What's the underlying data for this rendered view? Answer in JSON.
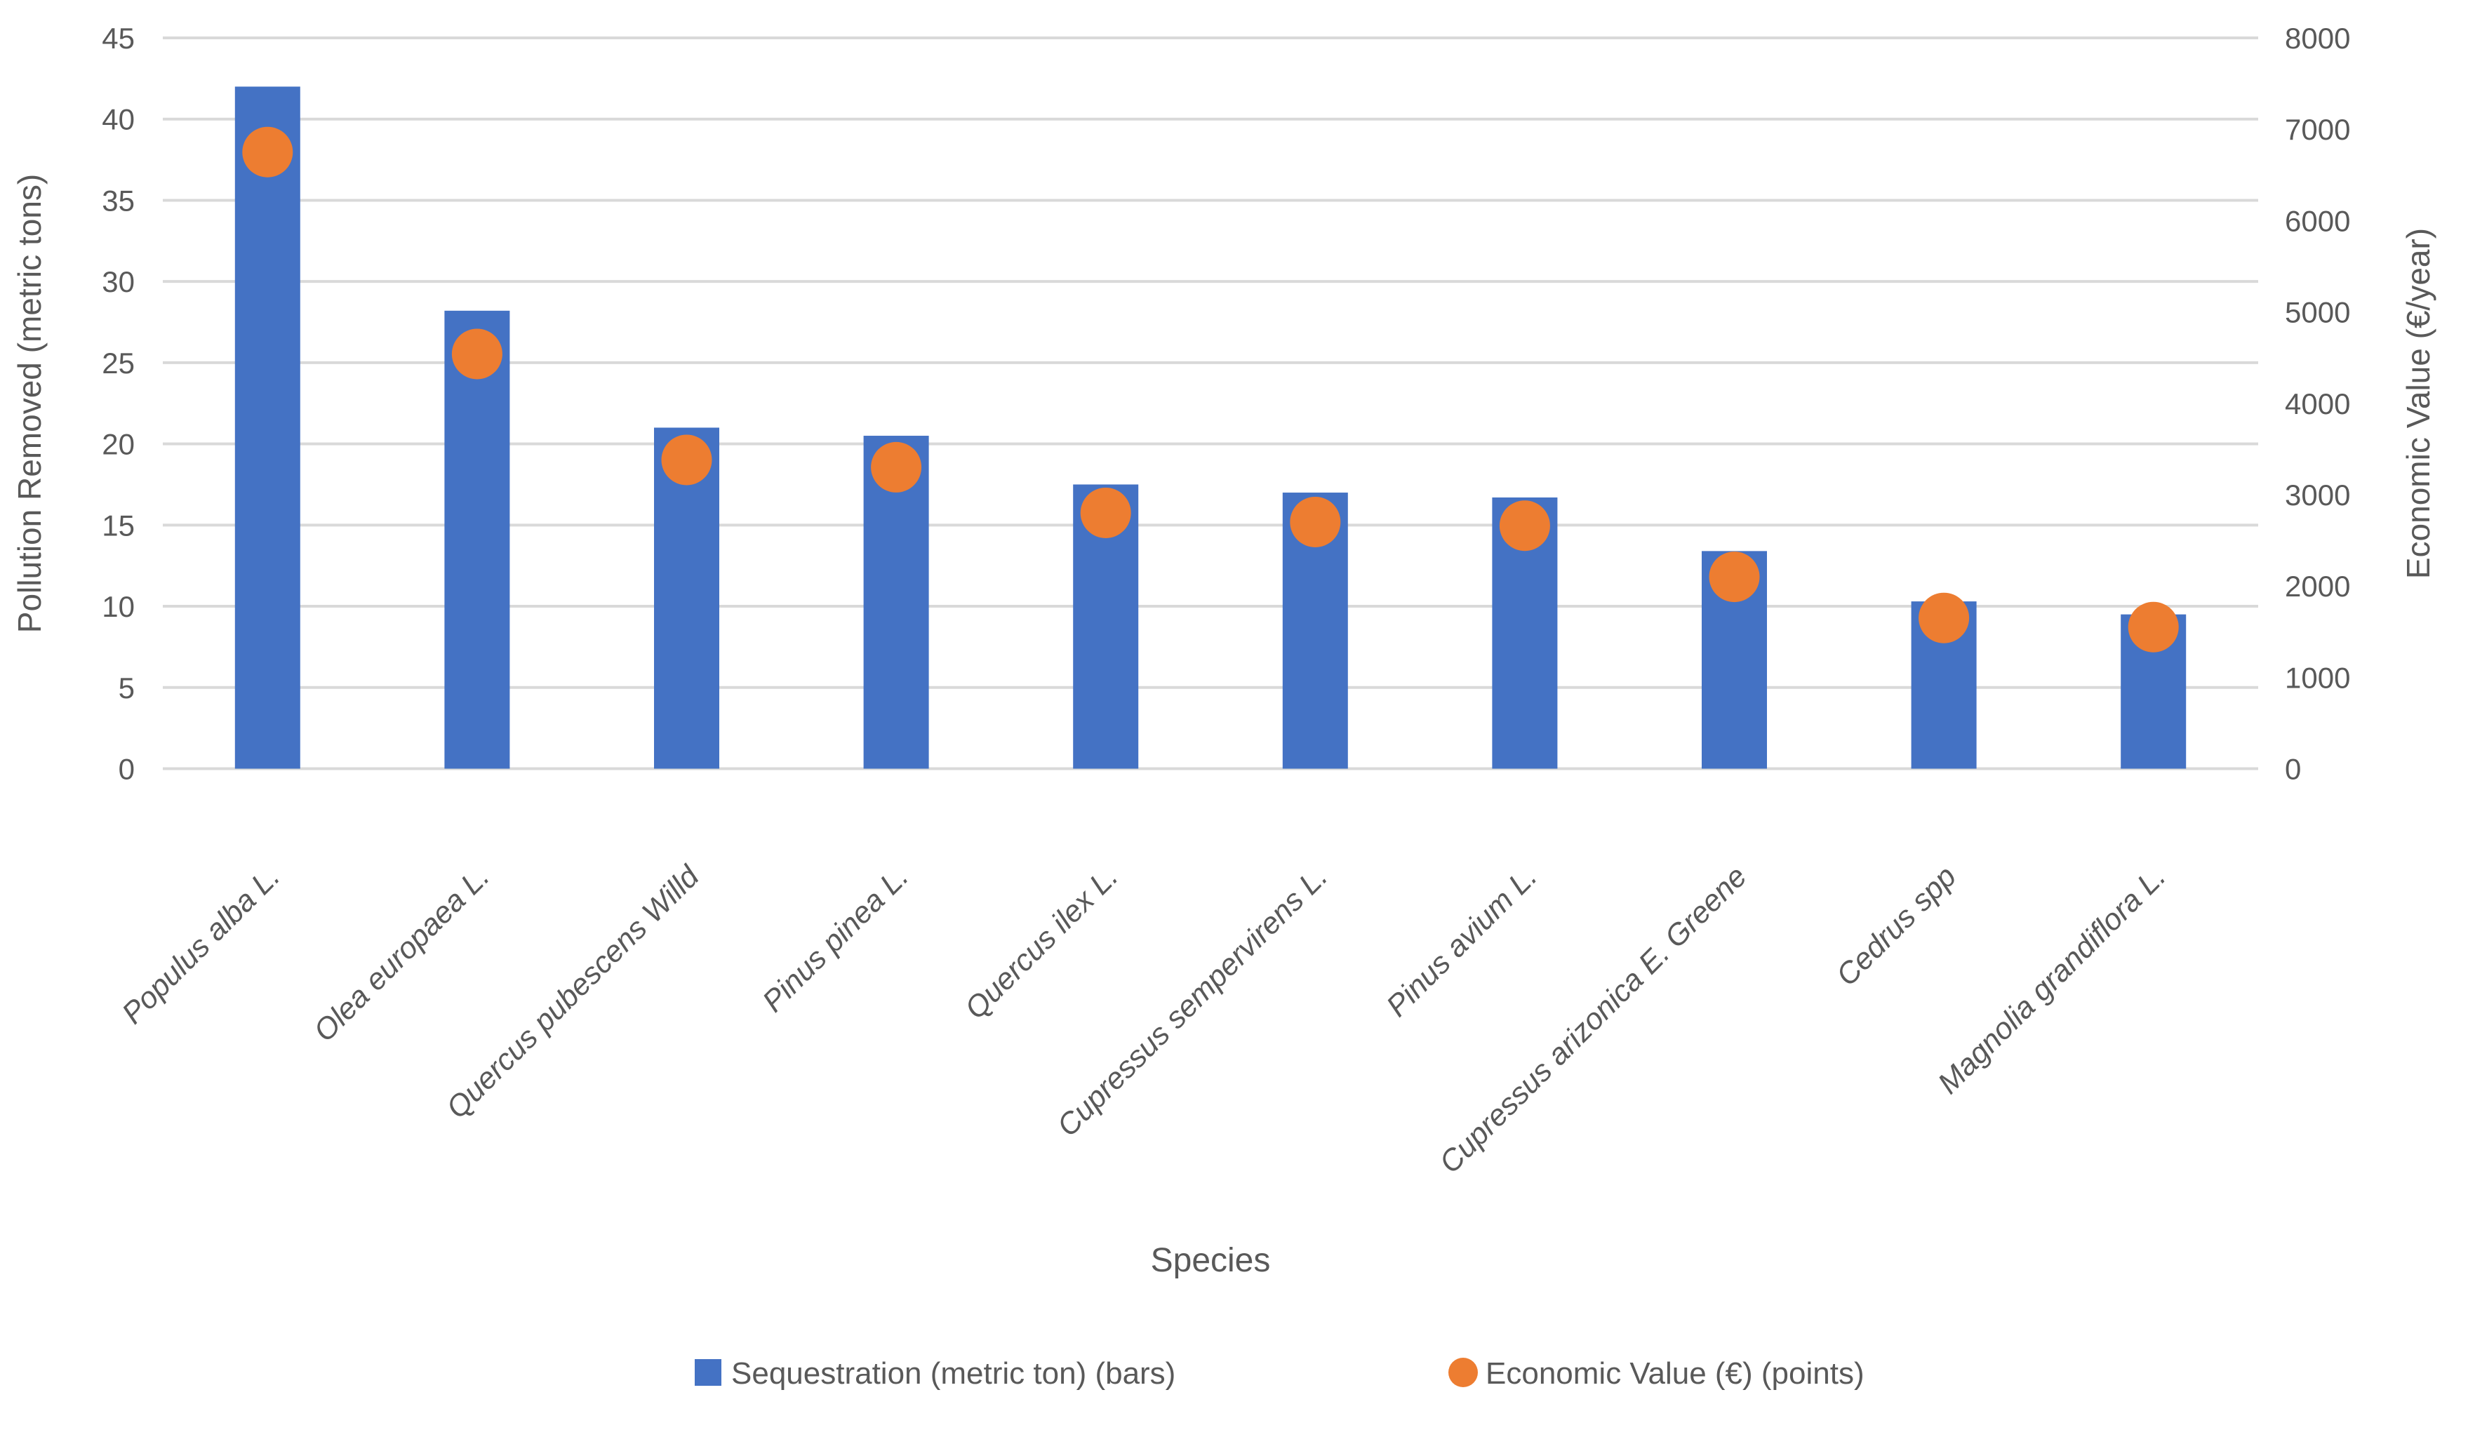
{
  "chart_data": {
    "type": "bar",
    "subtype": "dual-axis-bar-with-points",
    "categories": [
      "Populus alba L.",
      "Olea europaea L.",
      "Quercus pubescens Willd",
      "Pinus pinea L.",
      "Quercus ilex L.",
      "Cupressus sempervirens L.",
      "Pinus avium L.",
      "Cupressus arizonica E. Greene",
      "Cedrus spp",
      "Magnolia grandiflora L."
    ],
    "series": [
      {
        "name": "Sequestration (metric ton) (bars)",
        "marker": "bar",
        "axis": "left",
        "color": "#4472C4",
        "values": [
          42,
          28.2,
          21,
          20.5,
          17.5,
          17,
          16.7,
          13.4,
          10.3,
          9.5
        ]
      },
      {
        "name": "Economic Value (€) (points)",
        "marker": "point",
        "axis": "right",
        "color": "#ED7D31",
        "values": [
          6750,
          4540,
          3380,
          3300,
          2800,
          2700,
          2660,
          2100,
          1650,
          1550
        ]
      }
    ],
    "left_axis": {
      "title": "Pollution Removed (metric tons)",
      "min": 0,
      "max": 45,
      "step": 5,
      "ticks": [
        0,
        5,
        10,
        15,
        20,
        25,
        30,
        35,
        40,
        45
      ]
    },
    "right_axis": {
      "title": "Economic Value (€/year)",
      "min": 0,
      "max": 8000,
      "step": 1000,
      "ticks": [
        0,
        1000,
        2000,
        3000,
        4000,
        5000,
        6000,
        7000,
        8000
      ]
    },
    "x_axis": {
      "title": "Species"
    },
    "grid": true,
    "legend_position": "bottom",
    "colors": {
      "bar": "#4472C4",
      "point": "#ED7D31",
      "gridline": "#D9D9D9",
      "text": "#595959"
    }
  }
}
